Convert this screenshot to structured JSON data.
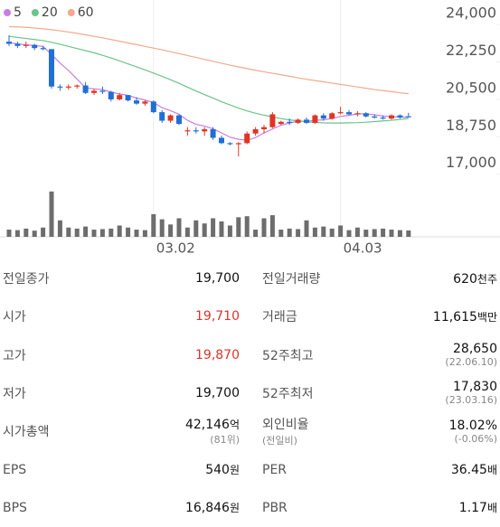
{
  "chart_data": {
    "type": "candlestick",
    "ylim": [
      16900,
      25150
    ],
    "yticks": [
      {
        "value": 24000,
        "label": "24,000"
      },
      {
        "value": 22250,
        "label": "22,250"
      },
      {
        "value": 20500,
        "label": "20,500"
      },
      {
        "value": 18750,
        "label": "18,750"
      },
      {
        "value": 17000,
        "label": "17,000"
      }
    ],
    "xticks": [
      {
        "value": 17,
        "label": "03.02"
      },
      {
        "value": 39,
        "label": "04.03"
      }
    ],
    "up_color": "#e03524",
    "down_color": "#1f6fd6",
    "open": [
      23200,
      23100,
      23000,
      23050,
      22900,
      22850,
      21100,
      21050,
      21100,
      21150,
      20800,
      20900,
      20850,
      20500,
      20700,
      20450,
      20300,
      20400,
      19900,
      19500,
      19750,
      19000,
      19050,
      19000,
      19100,
      18700,
      18450,
      18400,
      18450,
      18900,
      19100,
      19200,
      19350,
      19450,
      19400,
      19550,
      19400,
      19750,
      19600,
      19850,
      19900,
      19800,
      19850,
      19700,
      19650,
      19600,
      19750,
      19710
    ],
    "high": [
      23500,
      23200,
      23200,
      23100,
      23000,
      22850,
      21200,
      21200,
      21200,
      21300,
      21000,
      21100,
      20900,
      20800,
      20700,
      20600,
      20450,
      20450,
      20000,
      19800,
      19800,
      19200,
      19200,
      19200,
      19200,
      18800,
      18500,
      18500,
      19000,
      19200,
      19300,
      19900,
      19500,
      19600,
      19600,
      19650,
      19800,
      19850,
      19900,
      20150,
      20000,
      19950,
      19900,
      19800,
      19750,
      19800,
      19800,
      19870
    ],
    "low": [
      23000,
      22900,
      22900,
      22800,
      22800,
      21000,
      20900,
      20950,
      21000,
      20750,
      20700,
      20750,
      20400,
      20450,
      20400,
      20250,
      20200,
      19850,
      19400,
      19400,
      19300,
      18800,
      18900,
      18800,
      18600,
      18400,
      18350,
      17830,
      18400,
      18800,
      18900,
      19150,
      19300,
      19300,
      19350,
      19350,
      19350,
      19500,
      19550,
      19800,
      19750,
      19700,
      19650,
      19600,
      19550,
      19550,
      19600,
      19700
    ],
    "close": [
      23100,
      23000,
      23050,
      22900,
      22850,
      21100,
      21050,
      21100,
      21150,
      20800,
      20900,
      20850,
      20500,
      20700,
      20450,
      20300,
      20400,
      19900,
      19500,
      19750,
      19350,
      19050,
      19000,
      19100,
      18700,
      18450,
      18400,
      18450,
      18900,
      19100,
      19200,
      19800,
      19450,
      19400,
      19550,
      19400,
      19750,
      19600,
      19850,
      19900,
      19800,
      19850,
      19700,
      19650,
      19600,
      19750,
      19650,
      19700
    ],
    "series": [
      {
        "name": "5",
        "color": "#c87ee0",
        "values": [
          23150,
          23100,
          23050,
          23020,
          22980,
          22600,
          22200,
          21850,
          21450,
          21040,
          20990,
          20960,
          20840,
          20750,
          20690,
          20560,
          20470,
          20350,
          20110,
          19970,
          19800,
          19520,
          19330,
          19250,
          19120,
          18930,
          18730,
          18630,
          18590,
          18710,
          18930,
          19110,
          19290,
          19390,
          19480,
          19470,
          19520,
          19540,
          19600,
          19700,
          19750,
          19820,
          19820,
          19780,
          19720,
          19690,
          19670,
          19660
        ]
      },
      {
        "name": "20",
        "color": "#6cc48a",
        "values": [
          23450,
          23400,
          23350,
          23300,
          23250,
          23170,
          23080,
          22980,
          22880,
          22780,
          22680,
          22560,
          22440,
          22300,
          22160,
          22020,
          21880,
          21730,
          21580,
          21420,
          21250,
          21070,
          20890,
          20720,
          20560,
          20390,
          20240,
          20090,
          19960,
          19850,
          19760,
          19680,
          19600,
          19540,
          19490,
          19450,
          19420,
          19400,
          19390,
          19390,
          19400,
          19410,
          19430,
          19460,
          19490,
          19520,
          19560,
          19600
        ]
      },
      {
        "name": "60",
        "color": "#f3a98a",
        "values": [
          23900,
          23890,
          23870,
          23840,
          23800,
          23760,
          23710,
          23650,
          23590,
          23520,
          23450,
          23380,
          23300,
          23220,
          23140,
          23060,
          22980,
          22900,
          22820,
          22730,
          22640,
          22550,
          22460,
          22370,
          22280,
          22190,
          22100,
          22020,
          21940,
          21860,
          21790,
          21720,
          21650,
          21580,
          21510,
          21440,
          21380,
          21320,
          21260,
          21200,
          21140,
          21080,
          21020,
          20960,
          20910,
          20860,
          20810,
          20760
        ]
      }
    ],
    "volume": {
      "color": "#6d6d6d",
      "ylim": [
        0,
        5000
      ],
      "values": [
        700,
        650,
        800,
        600,
        900,
        4400,
        1600,
        900,
        800,
        1000,
        700,
        750,
        800,
        1100,
        900,
        700,
        650,
        2200,
        1700,
        1200,
        1800,
        900,
        1600,
        1300,
        1800,
        1500,
        1100,
        1900,
        2000,
        700,
        1800,
        2100,
        700,
        800,
        750,
        1600,
        900,
        1000,
        800,
        1100,
        650,
        900,
        700,
        750,
        800,
        700,
        650,
        620
      ]
    }
  },
  "table": {
    "up_color": "#d9352b",
    "rows": [
      {
        "left": {
          "label": "전일종가",
          "value": "19,700"
        },
        "right": {
          "label": "전일거래량",
          "value": "620",
          "unit": "천주"
        }
      },
      {
        "left": {
          "label": "시가",
          "value": "19,710",
          "up": true
        },
        "right": {
          "label": "거래금",
          "value": "11,615",
          "unit": "백만"
        }
      },
      {
        "left": {
          "label": "고가",
          "value": "19,870",
          "up": true
        },
        "right": {
          "label": "52주최고",
          "value": "28,650",
          "note": "(22.06.10)"
        }
      },
      {
        "left": {
          "label": "저가",
          "value": "19,700"
        },
        "right": {
          "label": "52주최저",
          "value": "17,830",
          "note": "(23.03.16)"
        }
      },
      {
        "left": {
          "label": "시가총액",
          "value": "42,146",
          "unit": "억",
          "note": "(81위)"
        },
        "right": {
          "label": "외인비율",
          "sublabel": "(전일비)",
          "value": "18.02%",
          "note": "(-0.06%)"
        }
      },
      {
        "left": {
          "label": "EPS",
          "value": "540",
          "unit": "원"
        },
        "right": {
          "label": "PER",
          "value": "36.45",
          "unit": "배"
        }
      },
      {
        "left": {
          "label": "BPS",
          "value": "16,846",
          "unit": "원"
        },
        "right": {
          "label": "PBR",
          "value": "1.17",
          "unit": "배"
        }
      }
    ]
  }
}
